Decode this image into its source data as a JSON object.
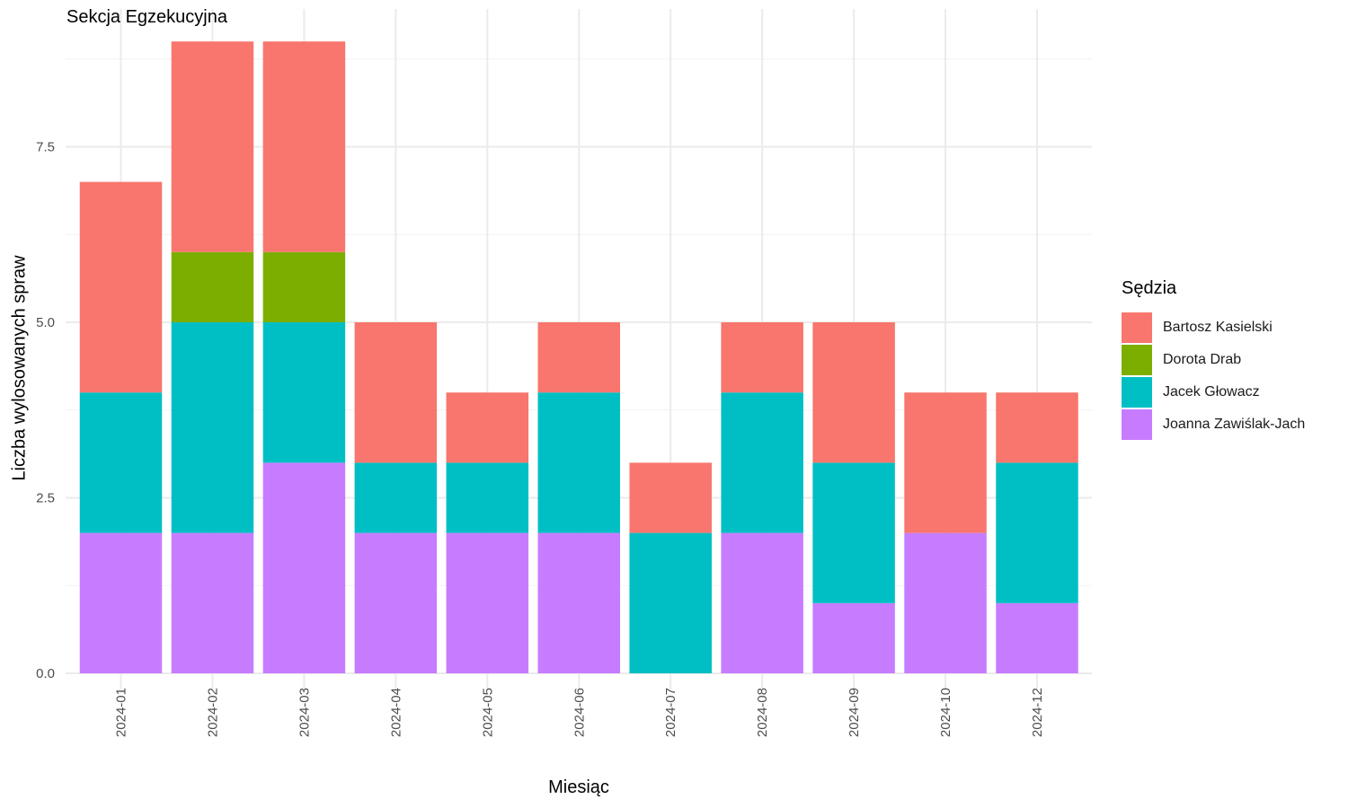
{
  "chart_data": {
    "type": "bar",
    "stacked": true,
    "title": "Sekcja Egzekucyjna",
    "xlabel": "Miesiąc",
    "ylabel": "Liczba wylosowanych spraw",
    "ylim": [
      0,
      9
    ],
    "yticks": [
      "0.0",
      "2.5",
      "5.0",
      "7.5"
    ],
    "grid": true,
    "legend_position": "right",
    "legend_title": "Sędzia",
    "categories": [
      "2024-01",
      "2024-02",
      "2024-03",
      "2024-04",
      "2024-05",
      "2024-06",
      "2024-07",
      "2024-08",
      "2024-09",
      "2024-10",
      "2024-12"
    ],
    "series": [
      {
        "name": "Joanna Zawiślak-Jach",
        "color": "#C77CFF",
        "values": [
          2,
          2,
          3,
          2,
          2,
          2,
          0,
          2,
          1,
          2,
          1
        ]
      },
      {
        "name": "Jacek Głowacz",
        "color": "#00BFC4",
        "values": [
          2,
          3,
          2,
          1,
          1,
          2,
          2,
          2,
          2,
          0,
          2
        ]
      },
      {
        "name": "Dorota Drab",
        "color": "#7CAE00",
        "values": [
          0,
          1,
          1,
          0,
          0,
          0,
          0,
          0,
          0,
          0,
          0
        ]
      },
      {
        "name": "Bartosz Kasielski",
        "color": "#F8766D",
        "values": [
          3,
          3,
          3,
          2,
          1,
          1,
          1,
          1,
          2,
          2,
          1
        ]
      }
    ],
    "legend_order": [
      "Bartosz Kasielski",
      "Dorota Drab",
      "Jacek Głowacz",
      "Joanna Zawiślak-Jach"
    ]
  }
}
